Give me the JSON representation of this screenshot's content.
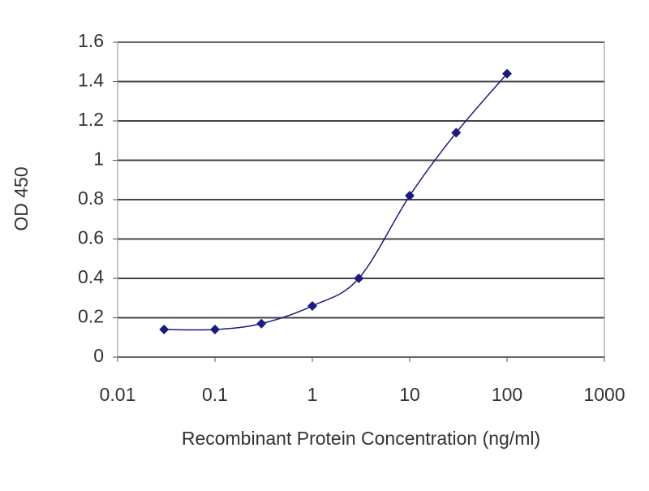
{
  "chart_data": {
    "type": "line",
    "xlabel": "Recombinant Protein Concentration (ng/ml)",
    "ylabel": "OD 450",
    "xscale": "log",
    "grid": true,
    "xlim": [
      0.01,
      1000
    ],
    "xticks": [
      0.01,
      0.1,
      1,
      10,
      100,
      1000
    ],
    "ylim": [
      0,
      1.6
    ],
    "yticks": [
      0,
      0.2,
      0.4,
      0.6,
      0.8,
      1,
      1.2,
      1.4,
      1.6
    ],
    "series": [
      {
        "color": "#1a1a80",
        "x": [
          0.03,
          0.1,
          0.3,
          1,
          3,
          10,
          30,
          100
        ],
        "values": [
          0.14,
          0.14,
          0.17,
          0.26,
          0.4,
          0.82,
          1.14,
          1.44
        ]
      }
    ]
  }
}
